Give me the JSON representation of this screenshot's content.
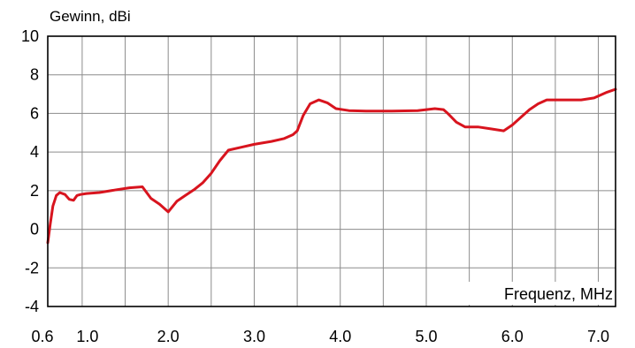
{
  "chart_data": {
    "type": "line",
    "title": "Gewinn, dBi",
    "ylabel": "Gewinn, dBi",
    "xlabel": "Frequenz, MHz",
    "xlim": [
      0.6,
      7.2
    ],
    "ylim": [
      -4,
      10
    ],
    "grid": true,
    "x_tick_labels": [
      "0.6",
      "1.0",
      "2.0",
      "3.0",
      "4.0",
      "5.0",
      "6.0",
      "7.0"
    ],
    "x_tick_values": [
      0.6,
      1.0,
      2.0,
      3.0,
      4.0,
      5.0,
      6.0,
      7.0
    ],
    "x_grid_values": [
      0.6,
      1.0,
      1.5,
      2.0,
      2.5,
      3.0,
      3.5,
      4.0,
      4.5,
      5.0,
      5.5,
      6.0,
      6.5,
      7.0
    ],
    "y_tick_labels": [
      "10",
      "8",
      "6",
      "4",
      "2",
      "0",
      "-2",
      "-4"
    ],
    "y_tick_values": [
      10,
      8,
      6,
      4,
      2,
      0,
      -2,
      -4
    ],
    "series": [
      {
        "color": "#d8141e",
        "x": [
          0.6,
          0.63,
          0.66,
          0.7,
          0.74,
          0.8,
          0.85,
          0.9,
          0.94,
          0.98,
          1.05,
          1.2,
          1.4,
          1.55,
          1.7,
          1.8,
          1.9,
          2.0,
          2.1,
          2.2,
          2.3,
          2.4,
          2.5,
          2.6,
          2.7,
          2.85,
          3.0,
          3.2,
          3.35,
          3.45,
          3.5,
          3.57,
          3.65,
          3.75,
          3.85,
          3.95,
          4.1,
          4.3,
          4.6,
          4.9,
          5.0,
          5.1,
          5.2,
          5.25,
          5.35,
          5.45,
          5.6,
          5.75,
          5.9,
          6.0,
          6.1,
          6.2,
          6.3,
          6.4,
          6.6,
          6.8,
          6.95,
          7.1,
          7.2
        ],
        "y": [
          -0.7,
          0.3,
          1.2,
          1.75,
          1.9,
          1.8,
          1.55,
          1.5,
          1.75,
          1.8,
          1.85,
          1.9,
          2.05,
          2.15,
          2.2,
          1.6,
          1.3,
          0.9,
          1.45,
          1.75,
          2.05,
          2.4,
          2.9,
          3.55,
          4.1,
          4.25,
          4.4,
          4.55,
          4.7,
          4.9,
          5.1,
          5.9,
          6.5,
          6.7,
          6.55,
          6.25,
          6.15,
          6.12,
          6.12,
          6.15,
          6.2,
          6.25,
          6.2,
          6.0,
          5.55,
          5.3,
          5.3,
          5.2,
          5.1,
          5.4,
          5.8,
          6.2,
          6.5,
          6.7,
          6.7,
          6.7,
          6.8,
          7.1,
          7.25
        ]
      }
    ]
  }
}
